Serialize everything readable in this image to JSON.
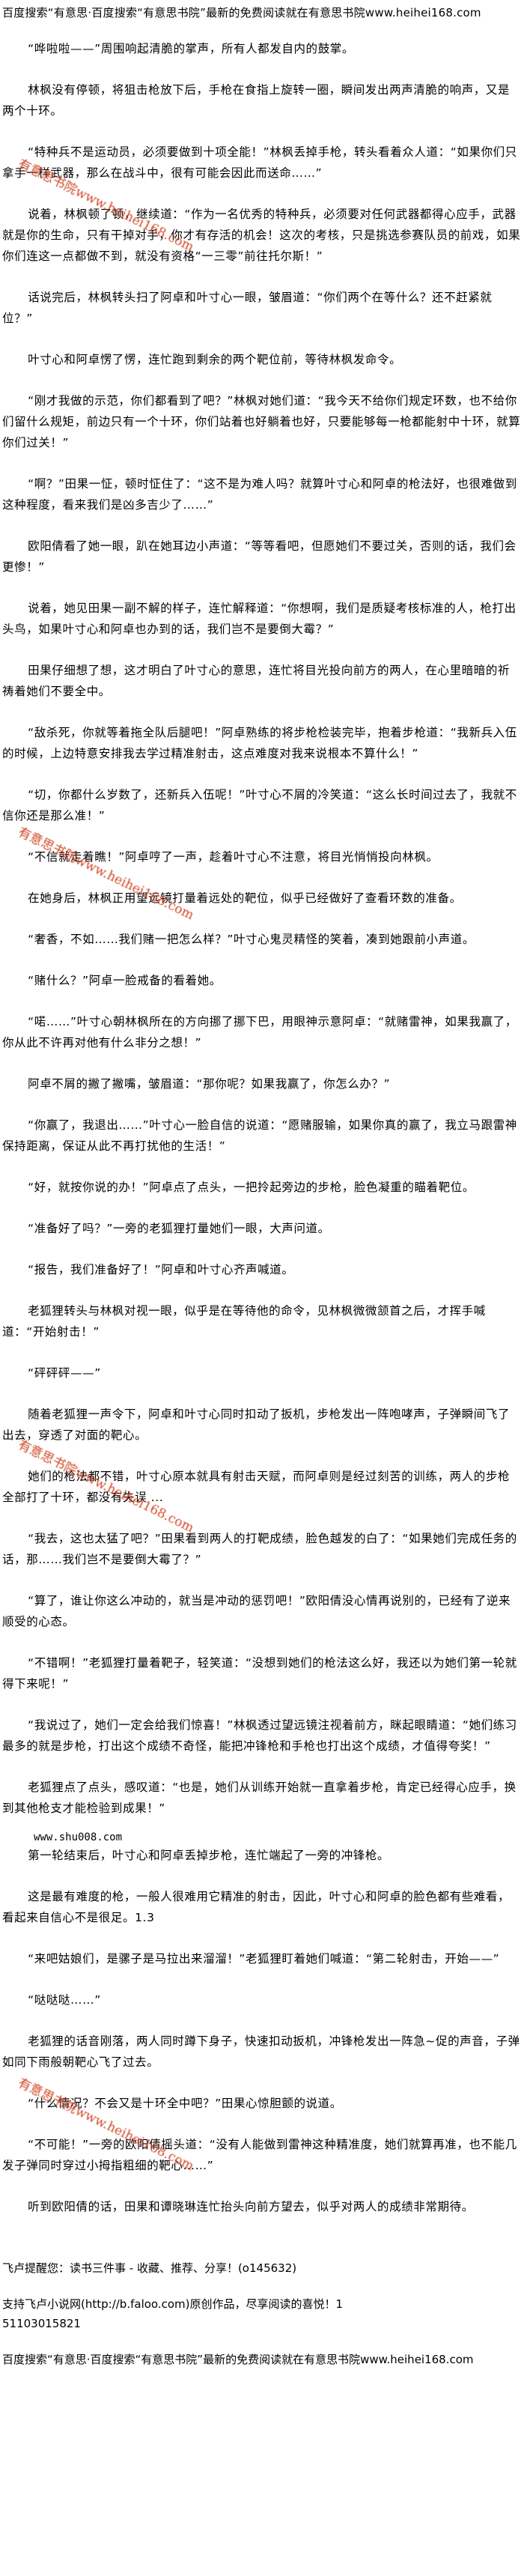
{
  "header": "百度搜索“有意思·百度搜索“有意思书院”最新的免费阅读就在有意思书院www.heihei168.com",
  "watermark": "有意思书院www.heihei168.com",
  "colors": {
    "watermark": "#d24a2a",
    "text": "#000000"
  },
  "paragraphs": [
    "“哗啦啦——”周围响起清脆的掌声，所有人都发自内的鼓掌。",
    "林枫没有停顿，将狙击枪放下后，手枪在食指上旋转一圈，瞬间发出两声清脆的响声，又是两个十环。",
    "“特种兵不是运动员，必须要做到十项全能！”林枫丢掉手枪，转头看着众人道：“如果你们只拿手一样武器，那么在战斗中，很有可能会因此而送命……”",
    "说着，林枫顿了顿，继续道：“作为一名优秀的特种兵，必须要对任何武器都得心应手，武器就是你的生命，只有干掉对手，你才有存活的机会！这次的考核，只是挑选参赛队员的前戏，如果你们连这一点都做不到，就没有资格“一三零”前往托尔斯！”",
    "话说完后，林枫转头扫了阿卓和叶寸心一眼，皱眉道：“你们两个在等什么？还不赶紧就位？”",
    "叶寸心和阿卓愣了愣，连忙跑到剩余的两个靶位前，等待林枫发命令。",
    "“刚才我做的示范，你们都看到了吧？”林枫对她们道：“我今天不给你们规定环数，也不给你们留什么规矩，前边只有一个十环，你们站着也好躺着也好，只要能够每一枪都能射中十环，就算你们过关！”",
    "“啊？”田果一怔，顿时怔住了：“这不是为难人吗？就算叶寸心和阿卓的枪法好，也很难做到这种程度，看来我们是凶多吉少了……”",
    "欧阳倩看了她一眼，趴在她耳边小声道：“等等看吧，但愿她们不要过关，否则的话，我们会更惨！”",
    "说着，她见田果一副不解的样子，连忙解释道：“你想啊，我们是质疑考核标准的人，枪打出头鸟，如果叶寸心和阿卓也办到的话，我们岂不是要倒大霉？”",
    "田果仔细想了想，这才明白了叶寸心的意思，连忙将目光投向前方的两人，在心里暗暗的祈祷着她们不要全中。",
    "“敌杀死，你就等着拖全队后腿吧！”阿卓熟练的将步枪检装完毕，抱着步枪道：“我新兵入伍的时候，上边特意安排我去学过精准射击，这点难度对我来说根本不算什么！”",
    "“切，你都什么岁数了，还新兵入伍呢！”叶寸心不屑的冷笑道：“这么长时间过去了，我就不信你还是那么准！”",
    "“不信就走着瞧！”阿卓哼了一声，趁着叶寸心不注意，将目光悄悄投向林枫。",
    "在她身后，林枫正用望远镜打量着远处的靶位，似乎已经做好了查看环数的准备。",
    "“奢香，不如……我们赌一把怎么样？”叶寸心鬼灵精怪的笑着，凑到她跟前小声道。",
    "“赌什么？”阿卓一脸戒备的看着她。",
    "“喏……”叶寸心朝林枫所在的方向挪了挪下巴，用眼神示意阿卓：“就赌雷神，如果我赢了，你从此不许再对他有什么非分之想！”",
    "阿卓不屑的撇了撇嘴，皱眉道：“那你呢？如果我赢了，你怎么办？”",
    "“你赢了，我退出……”叶寸心一脸自信的说道：“愿赌服输，如果你真的赢了，我立马跟雷神保持距离，保证从此不再打扰他的生活！”",
    "“好，就按你说的办！”阿卓点了点头，一把拎起旁边的步枪，脸色凝重的瞄着靶位。",
    "“准备好了吗？”一旁的老狐狸打量她们一眼，大声问道。",
    "“报告，我们准备好了！”阿卓和叶寸心齐声喊道。",
    "老狐狸转头与林枫对视一眼，似乎是在等待他的命令，见林枫微微颔首之后，才挥手喊道：“开始射击！”",
    "“砰砰砰——”",
    "随着老狐狸一声令下，阿卓和叶寸心同时扣动了扳机，步枪发出一阵咆哮声，子弹瞬间飞了出去，穿透了对面的靶心。",
    "她们的枪法都不错，叶寸心原本就具有射击天赋，而阿卓则是经过刻苦的训练，两人的步枪全部打了十环，都没有失误 ...",
    "“我去，这也太猛了吧？”田果看到两人的打靶成绩，脸色越发的白了：“如果她们完成任务的话，那……我们岂不是要倒大霉了？”",
    "“算了，谁让你这么冲动的，就当是冲动的惩罚吧！”欧阳倩没心情再说别的，已经有了逆来顺受的心态。",
    "“不错啊！”老狐狸打量着靶子，轻笑道：“没想到她们的枪法这么好，我还以为她们第一轮就得下来呢！”",
    "“我说过了，她们一定会给我们惊喜！”林枫透过望远镜注视着前方，眯起眼睛道：“她们练习最多的就是步枪，打出这个成绩不奇怪，能把冲锋枪和手枪也打出这个成绩，才值得夸奖！”",
    "老狐狸点了点头，感叹道：“也是，她们从训练开始就一直拿着步枪，肯定已经得心应手，换到其他枪支才能检验到成果！”"
  ],
  "source_line": "www.shu008.com",
  "paragraphs2": [
    "第一轮结束后，叶寸心和阿卓丢掉步枪，连忙端起了一旁的冲锋枪。",
    "这是最有难度的枪，一般人很难用它精准的射击，因此，叶寸心和阿卓的脸色都有些难看，看起来自信心不是很足。1.3",
    "“来吧姑娘们，是骡子是马拉出来溜溜！”老狐狸盯着她们喊道：“第二轮射击，开始——”",
    "“哒哒哒……”",
    "老狐狸的话音刚落，两人同时蹲下身子，快速扣动扳机，冲锋枪发出一阵急~促的声音，子弹如同下雨般朝靶心飞了过去。",
    "“什么情况？不会又是十环全中吧？”田果心惊胆颤的说道。",
    "“不可能！”一旁的欧阳倩摇头道：“没有人能做到雷神这种精准度，她们就算再准，也不能几发子弹同时穿过小拇指粗细的靶心……”",
    "听到欧阳倩的话，田果和谭晓琳连忙抬头向前方望去，似乎对两人的成绩非常期待。"
  ],
  "footer": {
    "reminder": "飞卢提醒您：读书三件事 - 收藏、推荐、分享！(o145632)",
    "support": "支持飞卢小说网(http://b.faloo.com)原创作品，尽享阅读的喜悦！1",
    "number": "51103015821",
    "header_repeat": "百度搜索“有意思·百度搜索“有意思书院”最新的免费阅读就在有意思书院www.heihei168.com"
  }
}
